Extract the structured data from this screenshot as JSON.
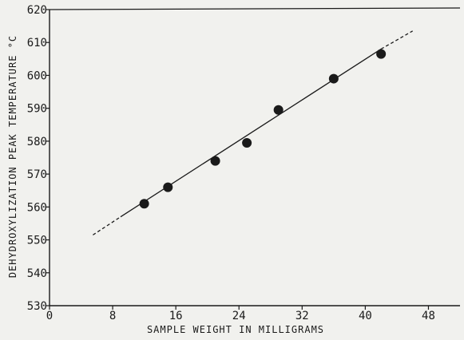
{
  "chart_data": {
    "type": "scatter",
    "title": "",
    "xlabel": "SAMPLE WEIGHT IN MILLIGRAMS",
    "ylabel": "DEHYDROXYLIZATION PEAK TEMPERATURE °C",
    "xlim": [
      0,
      52
    ],
    "ylim": [
      530,
      620
    ],
    "x_ticks": [
      "0",
      "8",
      "16",
      "24",
      "32",
      "40",
      "48"
    ],
    "y_ticks": [
      "530",
      "540",
      "550",
      "560",
      "570",
      "580",
      "590",
      "600",
      "610",
      "620"
    ],
    "grid": false,
    "legend": "none",
    "series": [
      {
        "points": [
          {
            "x": 12,
            "y": 561
          },
          {
            "x": 15,
            "y": 566
          },
          {
            "x": 21,
            "y": 574
          },
          {
            "x": 25,
            "y": 579.5
          },
          {
            "x": 29,
            "y": 589.5
          },
          {
            "x": 36,
            "y": 599
          },
          {
            "x": 42,
            "y": 606.5
          }
        ]
      }
    ],
    "fit_line": {
      "solid": {
        "x": [
          9,
          42
        ],
        "y": [
          557,
          608
        ]
      },
      "dashed": [
        {
          "x": [
            5.5,
            9
          ],
          "y": [
            551.5,
            557
          ]
        },
        {
          "x": [
            42,
            46
          ],
          "y": [
            608,
            613.5
          ]
        }
      ]
    },
    "colors": {
      "ink": "#1a1a1a",
      "background": "#f1f1ee"
    }
  }
}
